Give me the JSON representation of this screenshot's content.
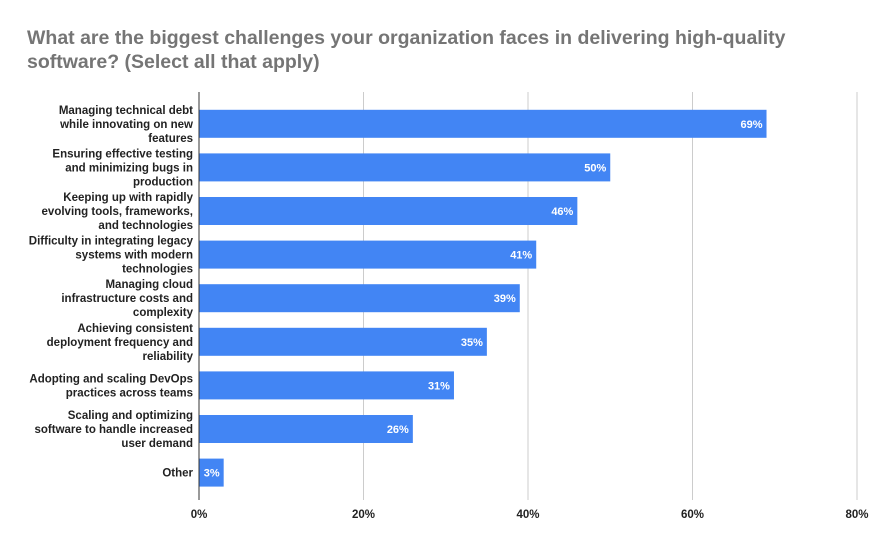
{
  "chart_data": {
    "type": "bar",
    "orientation": "horizontal",
    "title": "What are the biggest challenges your organization faces in delivering high-quality software? (Select all that apply)",
    "xlabel": "",
    "ylabel": "",
    "categories": [
      [
        "Managing technical debt",
        "while innovating on new",
        "features"
      ],
      [
        "Ensuring effective testing",
        "and minimizing bugs in",
        "production"
      ],
      [
        "Keeping up with rapidly",
        "evolving tools, frameworks,",
        "and technologies"
      ],
      [
        "Difficulty in integrating legacy",
        "systems with modern",
        "technologies"
      ],
      [
        "Managing cloud",
        "infrastructure costs and",
        "complexity"
      ],
      [
        "Achieving consistent",
        "deployment frequency and",
        "reliability"
      ],
      [
        "Adopting and scaling DevOps",
        "practices across teams"
      ],
      [
        "Scaling and optimizing",
        "software to handle increased",
        "user demand"
      ],
      [
        "Other"
      ]
    ],
    "values": [
      69,
      50,
      46,
      41,
      39,
      35,
      31,
      26,
      3
    ],
    "data_labels": [
      "69%",
      "50%",
      "46%",
      "41%",
      "39%",
      "35%",
      "31%",
      "26%",
      "3%"
    ],
    "xlim": [
      0,
      80
    ],
    "xticks": [
      0,
      20,
      40,
      60,
      80
    ],
    "xtick_labels": [
      "0%",
      "20%",
      "40%",
      "60%",
      "80%"
    ],
    "grid": true,
    "legend": "none",
    "colors": {
      "bar": "#4285f4",
      "grid": "#cccccc",
      "axis": "#333333",
      "title": "#757575",
      "label": "#222222",
      "data_label": "#ffffff"
    }
  }
}
